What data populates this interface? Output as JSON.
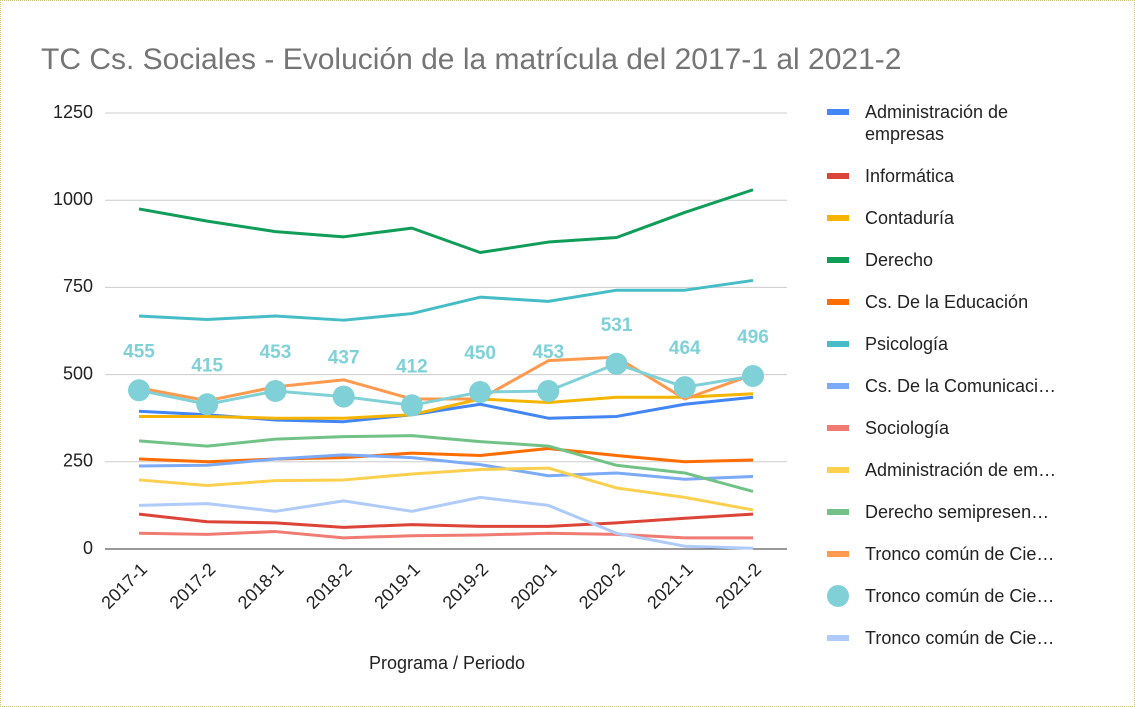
{
  "chart_data": {
    "type": "line",
    "title": "TC Cs. Sociales - Evolución de la matrícula del 2017-1 al 2021-2",
    "x_label": "Programa / Periodo",
    "categories": [
      "2017-1",
      "2017-2",
      "2018-1",
      "2018-2",
      "2019-1",
      "2019-2",
      "2020-1",
      "2020-2",
      "2021-1",
      "2021-2"
    ],
    "ylim": [
      0,
      1250
    ],
    "yticks": [
      0,
      250,
      500,
      750,
      1000,
      1250
    ],
    "grid": true,
    "legend": "right",
    "series": [
      {
        "name": "Administración de empresas",
        "color": "#4285f4",
        "values": [
          395,
          385,
          370,
          365,
          385,
          415,
          375,
          380,
          415,
          435
        ]
      },
      {
        "name": "Informática",
        "color": "#db4437",
        "values": [
          100,
          78,
          75,
          62,
          70,
          65,
          65,
          75,
          88,
          100
        ]
      },
      {
        "name": "Contaduría",
        "color": "#f4b400",
        "values": [
          380,
          380,
          375,
          375,
          385,
          430,
          420,
          435,
          435,
          445
        ]
      },
      {
        "name": "Derecho",
        "color": "#0f9d58",
        "values": [
          975,
          940,
          910,
          895,
          920,
          850,
          880,
          893,
          965,
          1030
        ]
      },
      {
        "name": "Cs. De la Educación",
        "color": "#ff6d01",
        "values": [
          258,
          250,
          258,
          262,
          275,
          268,
          288,
          268,
          250,
          255
        ]
      },
      {
        "name": "Psicología",
        "color": "#46bdc6",
        "values": [
          668,
          658,
          668,
          656,
          675,
          722,
          710,
          742,
          742,
          770
        ]
      },
      {
        "name": "Cs. De la Comunicaci…",
        "color": "#7baaf7",
        "values": [
          238,
          240,
          258,
          270,
          262,
          242,
          210,
          218,
          200,
          208
        ]
      },
      {
        "name": "Sociología",
        "color": "#f07b72",
        "values": [
          45,
          42,
          50,
          32,
          38,
          40,
          45,
          42,
          32,
          32
        ]
      },
      {
        "name": "Administración de em…",
        "color": "#fcd04f",
        "values": [
          198,
          182,
          196,
          198,
          215,
          228,
          232,
          175,
          148,
          112
        ]
      },
      {
        "name": "Derecho semipresen…",
        "color": "#71c287",
        "values": [
          310,
          295,
          315,
          322,
          325,
          308,
          295,
          240,
          218,
          165
        ]
      },
      {
        "name": "Tronco común de Cie…",
        "color": "#ff994d",
        "values": [
          462,
          425,
          465,
          485,
          430,
          430,
          540,
          550,
          430,
          500
        ]
      },
      {
        "name": "Tronco común de Cie…",
        "color": "#7fd1d7",
        "marker": "circle",
        "data_labels": true,
        "values": [
          455,
          415,
          453,
          437,
          412,
          450,
          453,
          531,
          464,
          496
        ]
      },
      {
        "name": "Tronco común de Cie…",
        "color": "#aecbfa",
        "values": [
          125,
          130,
          108,
          138,
          108,
          148,
          125,
          45,
          8,
          2
        ]
      }
    ]
  }
}
